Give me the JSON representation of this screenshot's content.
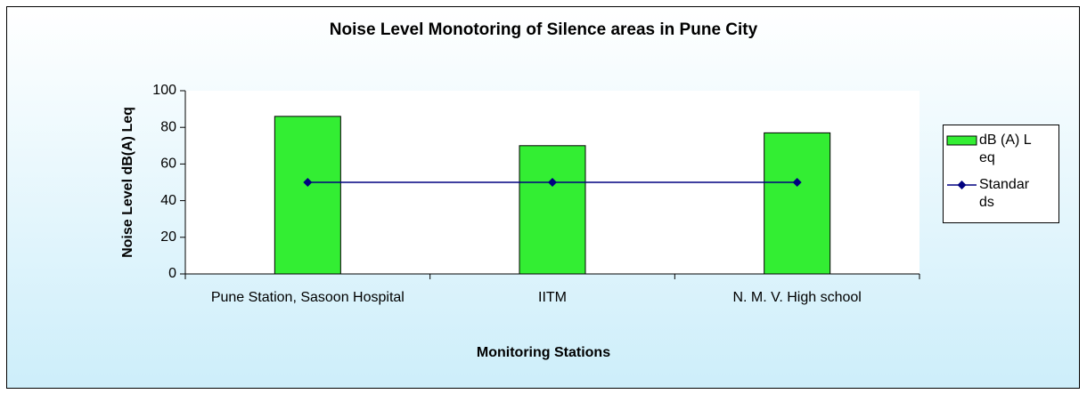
{
  "chart_data": {
    "type": "bar",
    "title": "Noise Level Monotoring of Silence areas in Pune City",
    "x_label": "Monitoring Stations",
    "y_label": "Noise Level dB(A) Leq",
    "categories": [
      "Pune Station, Sasoon Hospital",
      "IITM",
      "N. M. V. High school"
    ],
    "series": [
      {
        "name": "dB (A) Leq",
        "type": "bar",
        "color": "#33ee33",
        "values": [
          86,
          70,
          77
        ]
      },
      {
        "name": "Standards",
        "type": "line",
        "color": "#000080",
        "values": [
          50,
          50,
          50
        ]
      }
    ],
    "ylim": [
      0,
      100
    ],
    "yticks": [
      0,
      20,
      40,
      60,
      80,
      100
    ],
    "legend": "right"
  }
}
